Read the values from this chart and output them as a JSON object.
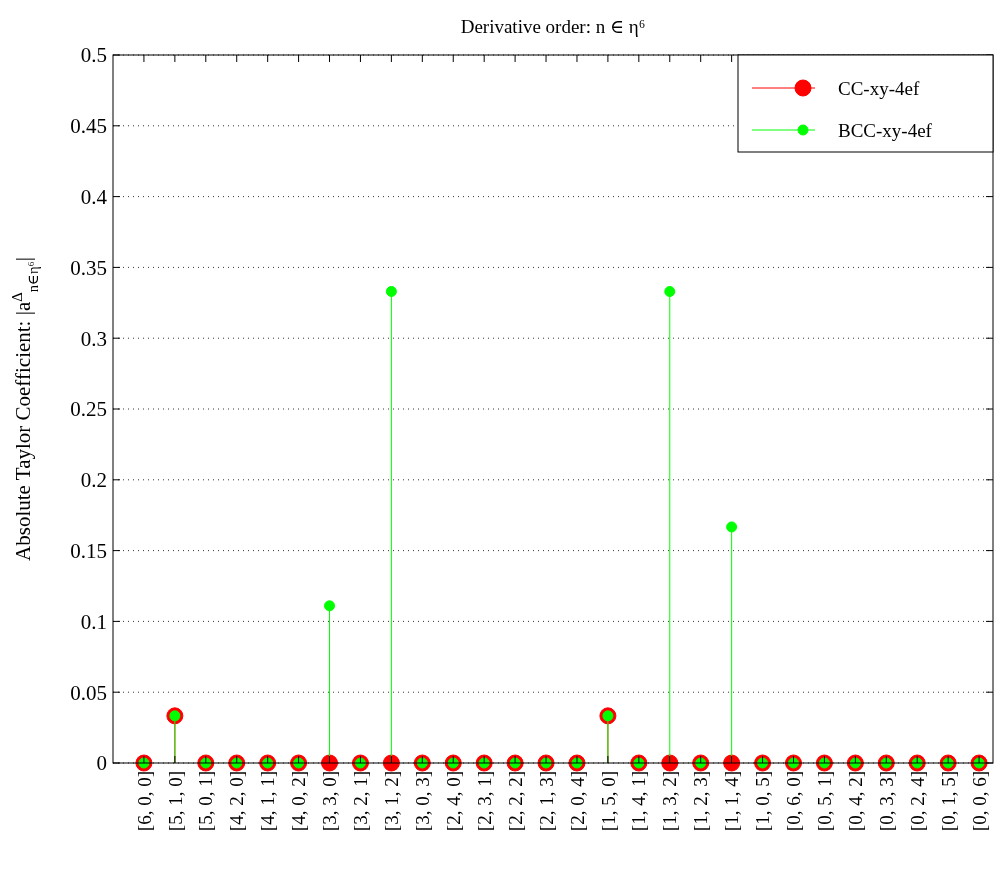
{
  "chart_data": {
    "type": "lollipop",
    "title": "Derivative order: n ∈ η⁶",
    "ylabel": "Absolute Taylor Coefficient: |a$^{Δ}$$_{n∈η⁶}$|",
    "categories": [
      "[6, 0, 0]",
      "[5, 1, 0]",
      "[5, 0, 1]",
      "[4, 2, 0]",
      "[4, 1, 1]",
      "[4, 0, 2]",
      "[3, 3, 0]",
      "[3, 2, 1]",
      "[3, 1, 2]",
      "[3, 0, 3]",
      "[2, 4, 0]",
      "[2, 3, 1]",
      "[2, 2, 2]",
      "[2, 1, 3]",
      "[2, 0, 4]",
      "[1, 5, 0]",
      "[1, 4, 1]",
      "[1, 3, 2]",
      "[1, 2, 3]",
      "[1, 1, 4]",
      "[1, 0, 5]",
      "[0, 6, 0]",
      "[0, 5, 1]",
      "[0, 4, 2]",
      "[0, 3, 3]",
      "[0, 2, 4]",
      "[0, 1, 5]",
      "[0, 0, 6]"
    ],
    "series": [
      {
        "name": "CC-xy-4ef",
        "color": "#ff0000",
        "values": [
          0,
          0.0333,
          0,
          0,
          0,
          0,
          0,
          0,
          0,
          0,
          0,
          0,
          0,
          0,
          0,
          0.0333,
          0,
          0,
          0,
          0,
          0,
          0,
          0,
          0,
          0,
          0,
          0,
          0
        ]
      },
      {
        "name": "BCC-xy-4ef",
        "color": "#00ff00",
        "values": [
          0,
          0.0333,
          0,
          0,
          0,
          0,
          0.111,
          0,
          0.333,
          0,
          0,
          0,
          0,
          0,
          0,
          0.0333,
          0,
          0.333,
          0,
          0.1667,
          0,
          0,
          0,
          0,
          0,
          0,
          0,
          0
        ]
      }
    ],
    "ylim": [
      0,
      0.5
    ],
    "yticks": [
      0,
      0.05,
      0.1,
      0.15,
      0.2,
      0.25,
      0.3,
      0.35,
      0.4,
      0.45,
      0.5
    ],
    "grid": "y",
    "legend": "top right",
    "marker": "circle"
  }
}
